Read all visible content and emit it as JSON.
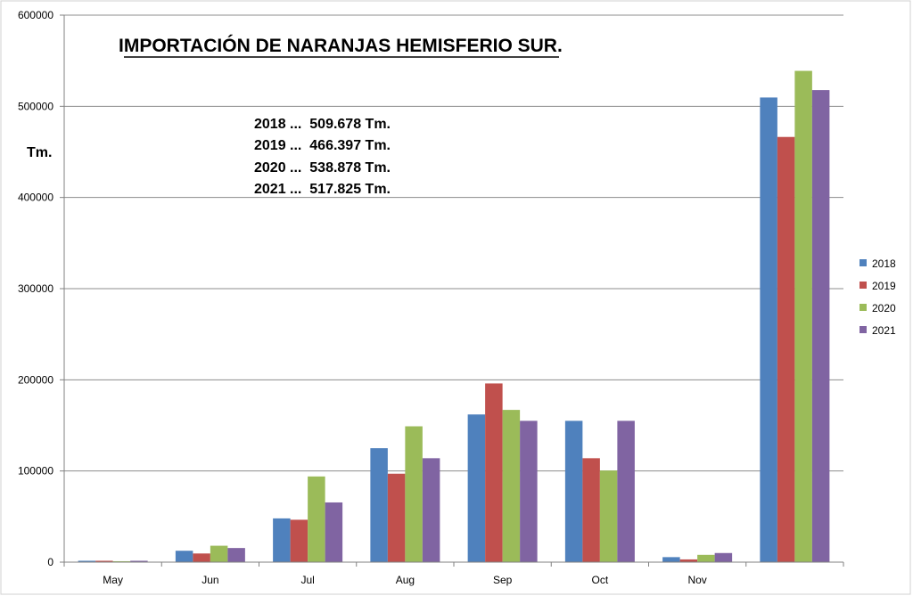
{
  "chart_data": {
    "type": "bar",
    "title": "IMPORTACIÓN DE NARANJAS HEMISFERIO SUR.",
    "ylabel": "Tm.",
    "xlabel": "",
    "ylim": [
      0,
      600000
    ],
    "yticks": [
      "0",
      "100000",
      "200000",
      "300000",
      "400000",
      "500000",
      "600000"
    ],
    "categories": [
      "May",
      "Jun",
      "Jul",
      "Aug",
      "Sep",
      "Oct",
      "Nov",
      ""
    ],
    "series": [
      {
        "name": "2018",
        "color": "#4F81BD",
        "values": [
          1500,
          12500,
          48000,
          125000,
          162000,
          155000,
          5500,
          509678
        ]
      },
      {
        "name": "2019",
        "color": "#C0504D",
        "values": [
          1500,
          9500,
          46500,
          97000,
          196000,
          114000,
          3000,
          466397
        ]
      },
      {
        "name": "2020",
        "color": "#9BBB59",
        "values": [
          1000,
          18000,
          94000,
          149000,
          167000,
          100500,
          8000,
          538878
        ]
      },
      {
        "name": "2021",
        "color": "#8064A2",
        "values": [
          1500,
          15500,
          65500,
          114000,
          155000,
          155000,
          10000,
          517825
        ]
      }
    ],
    "annotations": [
      "2018 ...  509.678 Tm.",
      "2019 ...  466.397 Tm.",
      "2020 ...  538.878 Tm.",
      "2021 ...  517.825 Tm."
    ],
    "grid": true,
    "legend_position": "right"
  }
}
